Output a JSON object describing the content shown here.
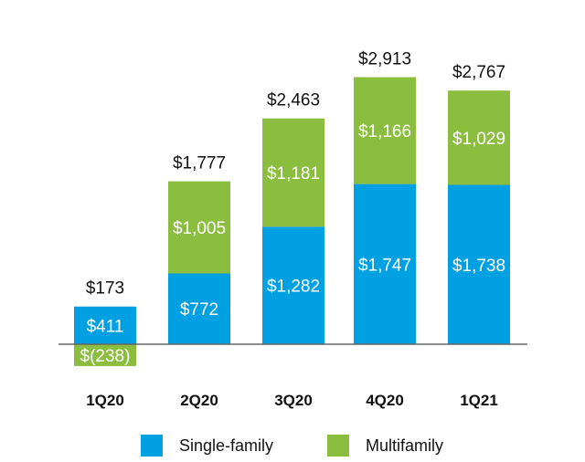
{
  "chart_data": {
    "type": "bar",
    "stacked": true,
    "categories": [
      "1Q20",
      "2Q20",
      "3Q20",
      "4Q20",
      "1Q21"
    ],
    "series": [
      {
        "name": "Single-family",
        "color": "#00a0e3",
        "values": [
          411,
          772,
          1282,
          1747,
          1738
        ],
        "labels": [
          "$411",
          "$772",
          "$1,282",
          "$1,747",
          "$1,738"
        ]
      },
      {
        "name": "Multifamily",
        "color": "#8bbd3f",
        "values": [
          -238,
          1005,
          1181,
          1166,
          1029
        ],
        "labels": [
          "$(238)",
          "$1,005",
          "$1,181",
          "$1,166",
          "$1,029"
        ]
      }
    ],
    "totals": [
      173,
      1777,
      2463,
      2913,
      2767
    ],
    "total_labels": [
      "$173",
      "$1,777",
      "$2,463",
      "$2,913",
      "$2,767"
    ],
    "title": "",
    "xlabel": "",
    "ylabel": "",
    "ylim": [
      -238,
      2913
    ],
    "grid": false,
    "legend_position": "bottom"
  }
}
